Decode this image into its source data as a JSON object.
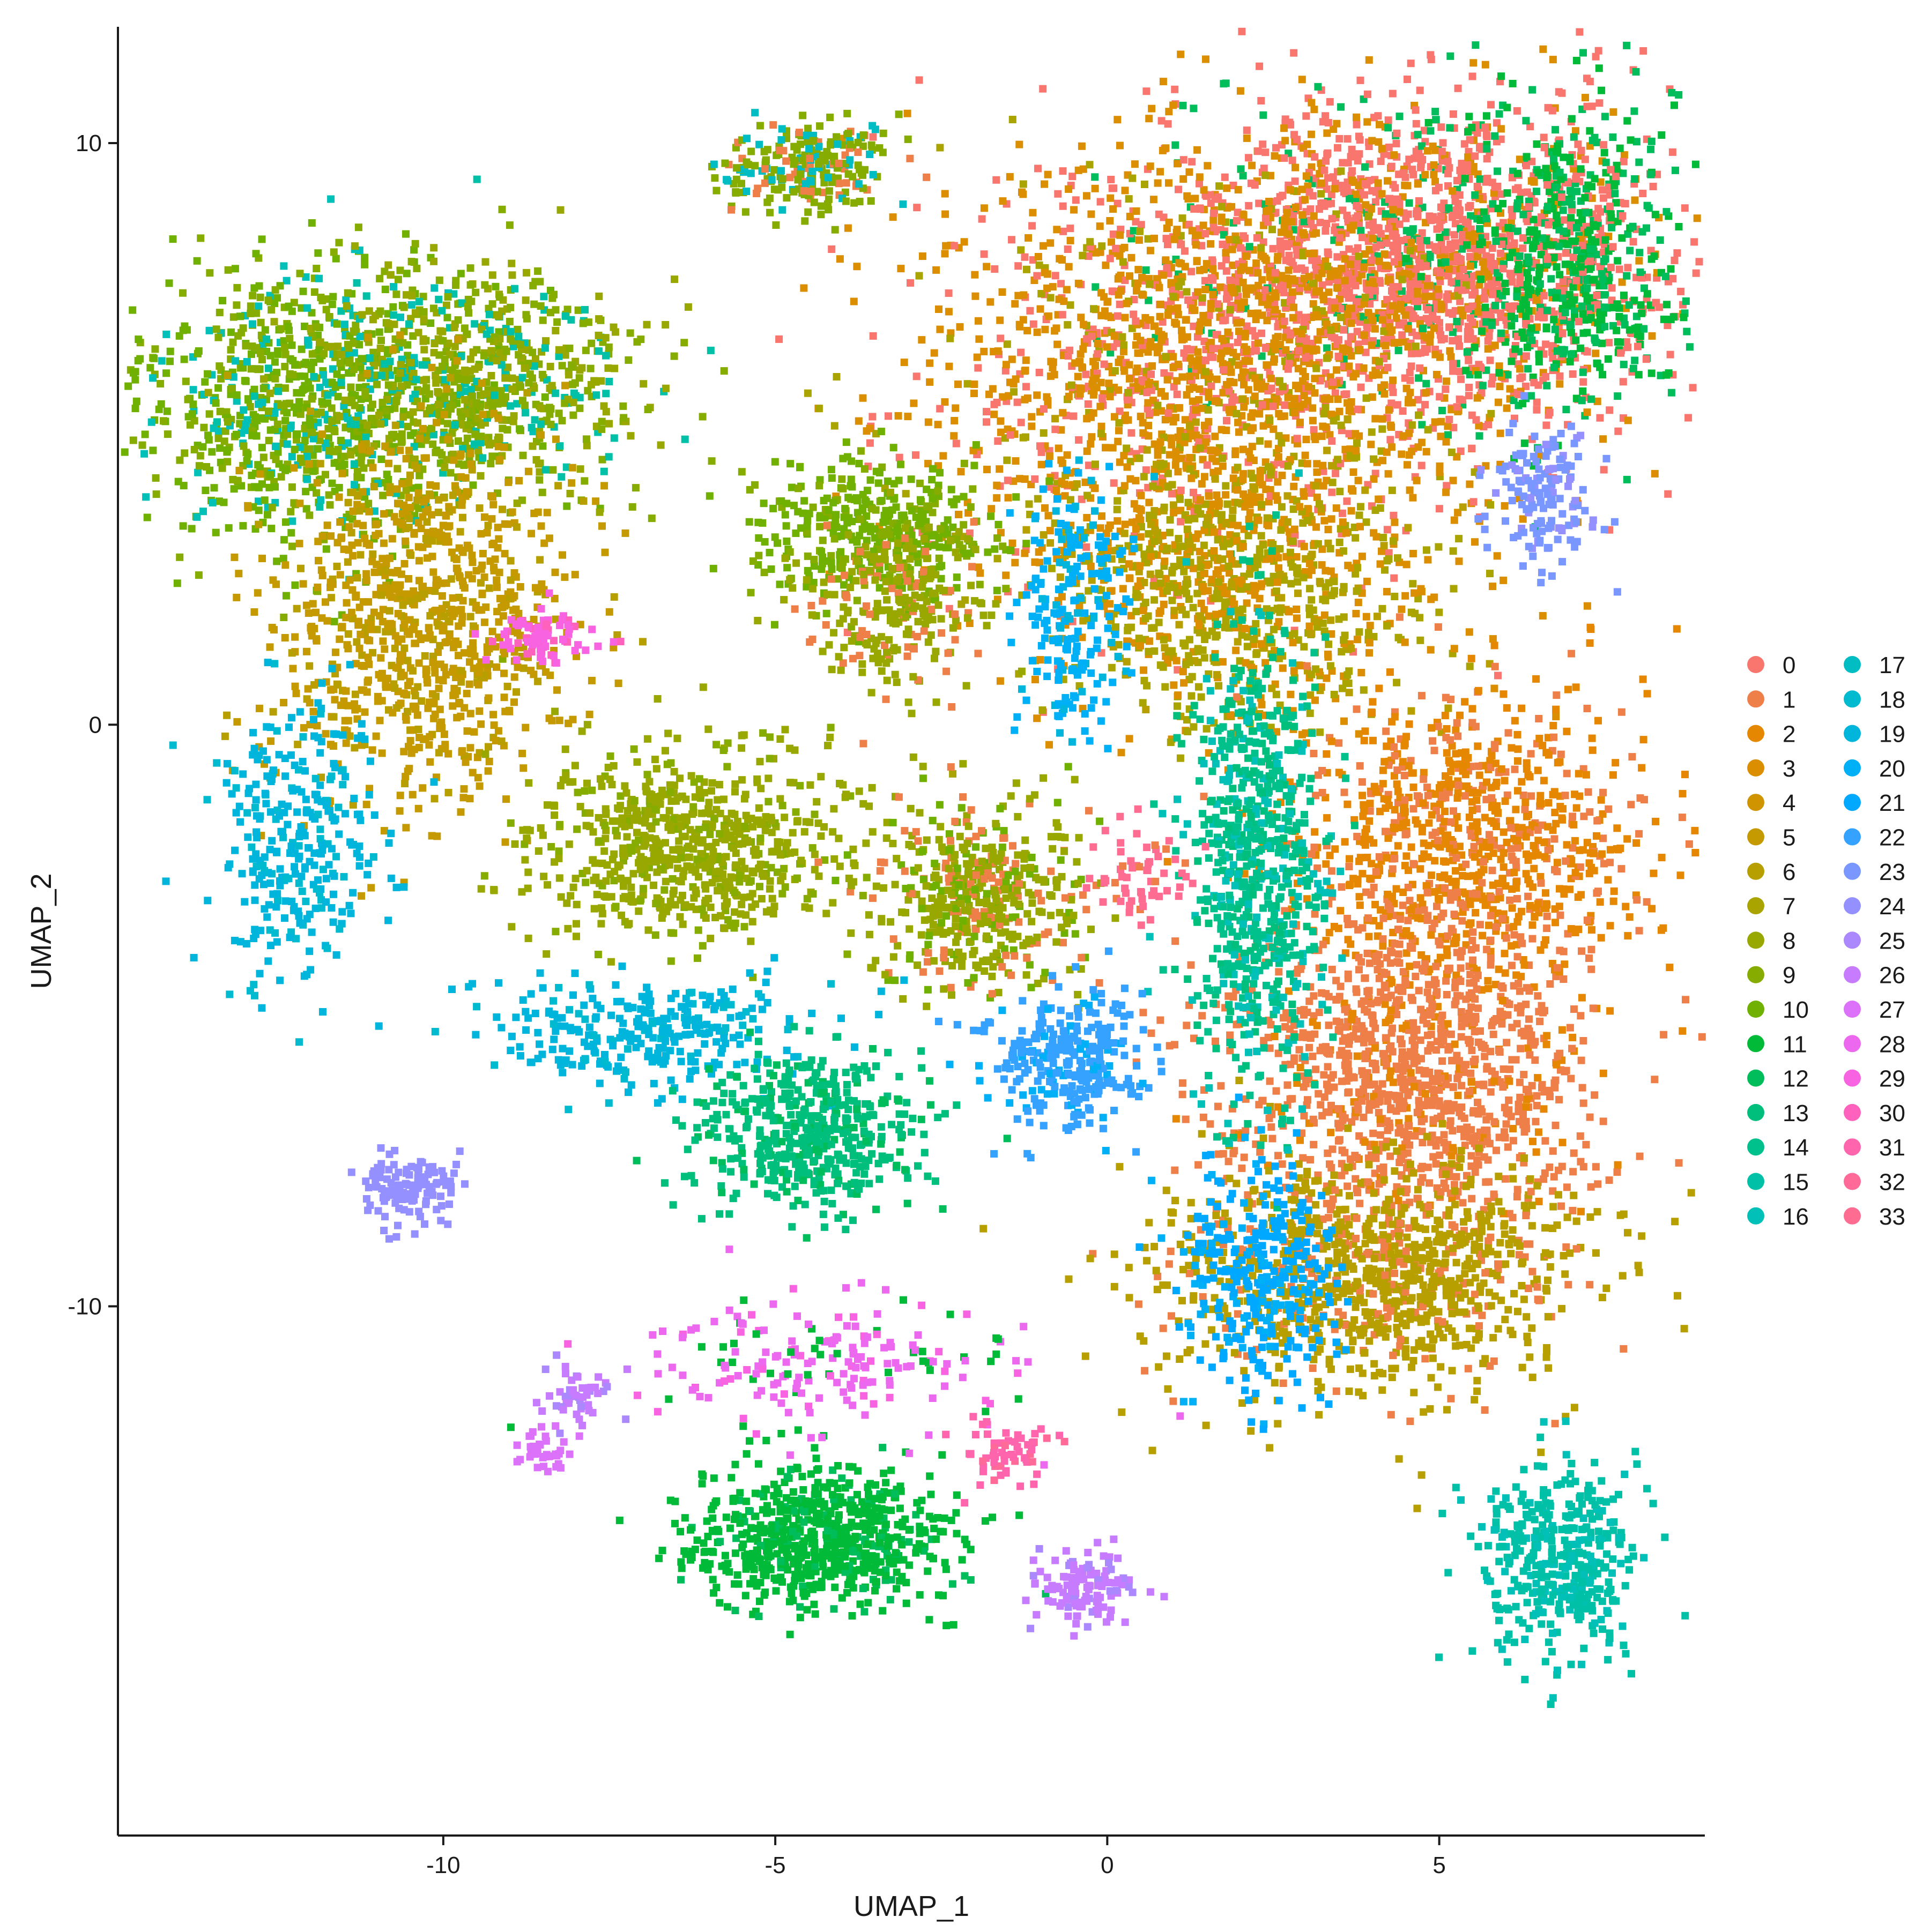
{
  "chart_data": {
    "type": "scatter",
    "xlabel": "UMAP_1",
    "ylabel": "UMAP_2",
    "xlim": [
      -14.9,
      9.0
    ],
    "ylim": [
      -19.1,
      12.0
    ],
    "xticks": [
      -10,
      -5,
      0,
      5
    ],
    "yticks": [
      10,
      0,
      -10
    ],
    "legend_position": "right",
    "legend_columns": 2,
    "grid": false,
    "series": [
      {
        "name": "0",
        "color": "#F8766D"
      },
      {
        "name": "1",
        "color": "#EF7F49"
      },
      {
        "name": "2",
        "color": "#E58700"
      },
      {
        "name": "3",
        "color": "#DB8E00"
      },
      {
        "name": "4",
        "color": "#D09400"
      },
      {
        "name": "5",
        "color": "#C49A00"
      },
      {
        "name": "6",
        "color": "#B79F00"
      },
      {
        "name": "7",
        "color": "#A9A400"
      },
      {
        "name": "8",
        "color": "#99A800"
      },
      {
        "name": "9",
        "color": "#86AC00"
      },
      {
        "name": "10",
        "color": "#6FB000"
      },
      {
        "name": "11",
        "color": "#00BA38"
      },
      {
        "name": "12",
        "color": "#00BD5C"
      },
      {
        "name": "13",
        "color": "#00BF7D"
      },
      {
        "name": "14",
        "color": "#00C08B"
      },
      {
        "name": "15",
        "color": "#00C1A7"
      },
      {
        "name": "16",
        "color": "#00C0B8"
      },
      {
        "name": "17",
        "color": "#00BDC4"
      },
      {
        "name": "18",
        "color": "#00BAD0"
      },
      {
        "name": "19",
        "color": "#00B5DC"
      },
      {
        "name": "20",
        "color": "#00B0F6"
      },
      {
        "name": "21",
        "color": "#00A9FF"
      },
      {
        "name": "22",
        "color": "#35A2FF"
      },
      {
        "name": "23",
        "color": "#7997FF"
      },
      {
        "name": "24",
        "color": "#9590FF"
      },
      {
        "name": "25",
        "color": "#AC88FF"
      },
      {
        "name": "26",
        "color": "#C77CFF"
      },
      {
        "name": "27",
        "color": "#DC71FA"
      },
      {
        "name": "28",
        "color": "#EC69EF"
      },
      {
        "name": "29",
        "color": "#F763E0"
      },
      {
        "name": "30",
        "color": "#FF62BC"
      },
      {
        "name": "31",
        "color": "#FF65AC"
      },
      {
        "name": "32",
        "color": "#FF6A98"
      },
      {
        "name": "33",
        "color": "#FF6C91"
      }
    ],
    "clusters": [
      {
        "x": 4.5,
        "y": 8.0,
        "sx": 1.9,
        "sy": 1.4,
        "n": 1800,
        "mix": [
          [
            0,
            6
          ],
          [
            3,
            2
          ],
          [
            12,
            1
          ]
        ]
      },
      {
        "x": 1.5,
        "y": 6.0,
        "sx": 2.2,
        "sy": 1.9,
        "n": 1800,
        "mix": [
          [
            3,
            5
          ],
          [
            0,
            2
          ],
          [
            7,
            1
          ]
        ]
      },
      {
        "x": 7.0,
        "y": 8.0,
        "sx": 0.8,
        "sy": 1.3,
        "n": 600,
        "mix": [
          [
            11,
            3
          ],
          [
            12,
            2
          ],
          [
            0,
            1
          ]
        ]
      },
      {
        "x": 2.0,
        "y": 2.5,
        "sx": 1.5,
        "sy": 1.2,
        "n": 900,
        "mix": [
          [
            7,
            3
          ],
          [
            3,
            2
          ],
          [
            6,
            1
          ]
        ]
      },
      {
        "x": 6.6,
        "y": 4.0,
        "sx": 0.4,
        "sy": 0.6,
        "n": 150,
        "mix": [
          [
            23,
            3
          ],
          [
            24,
            1
          ]
        ]
      },
      {
        "x": 5.5,
        "y": -2.0,
        "sx": 1.3,
        "sy": 1.3,
        "n": 900,
        "mix": [
          [
            2,
            5
          ],
          [
            1,
            2
          ]
        ]
      },
      {
        "x": 4.5,
        "y": -6.0,
        "sx": 1.4,
        "sy": 1.5,
        "n": 1200,
        "mix": [
          [
            1,
            6
          ],
          [
            2,
            1
          ]
        ]
      },
      {
        "x": 4.0,
        "y": -9.5,
        "sx": 1.6,
        "sy": 1.0,
        "n": 1000,
        "mix": [
          [
            6,
            5
          ],
          [
            1,
            1
          ]
        ]
      },
      {
        "x": 2.2,
        "y": -2.5,
        "sx": 0.5,
        "sy": 2.0,
        "n": 700,
        "mix": [
          [
            14,
            3
          ],
          [
            13,
            1
          ],
          [
            16,
            1
          ]
        ]
      },
      {
        "x": 2.3,
        "y": -9.5,
        "sx": 0.6,
        "sy": 1.0,
        "n": 300,
        "mix": [
          [
            21,
            3
          ],
          [
            20,
            1
          ]
        ]
      },
      {
        "x": -12.0,
        "y": 5.5,
        "sx": 1.4,
        "sy": 1.2,
        "n": 900,
        "mix": [
          [
            10,
            3
          ],
          [
            9,
            2
          ],
          [
            16,
            1
          ]
        ]
      },
      {
        "x": -9.5,
        "y": 6.0,
        "sx": 1.3,
        "sy": 1.0,
        "n": 700,
        "mix": [
          [
            9,
            3
          ],
          [
            8,
            2
          ],
          [
            15,
            1
          ]
        ]
      },
      {
        "x": -10.3,
        "y": 1.8,
        "sx": 1.1,
        "sy": 1.6,
        "n": 900,
        "mix": [
          [
            5,
            4
          ],
          [
            6,
            1
          ]
        ]
      },
      {
        "x": -6.3,
        "y": -2.0,
        "sx": 1.2,
        "sy": 0.8,
        "n": 700,
        "mix": [
          [
            8,
            4
          ],
          [
            9,
            1
          ]
        ]
      },
      {
        "x": -12.2,
        "y": -2.0,
        "sx": 0.6,
        "sy": 1.2,
        "n": 300,
        "mix": [
          [
            19,
            4
          ],
          [
            18,
            1
          ]
        ]
      },
      {
        "x": -8.5,
        "y": 1.5,
        "sx": 0.4,
        "sy": 0.2,
        "n": 80,
        "mix": [
          [
            29,
            3
          ],
          [
            30,
            1
          ]
        ]
      },
      {
        "x": -3.5,
        "y": 3.3,
        "sx": 0.9,
        "sy": 0.6,
        "n": 400,
        "mix": [
          [
            10,
            3
          ],
          [
            9,
            1
          ]
        ]
      },
      {
        "x": -3.2,
        "y": 2.0,
        "sx": 0.7,
        "sy": 0.7,
        "n": 250,
        "mix": [
          [
            8,
            3
          ],
          [
            1,
            1
          ]
        ]
      },
      {
        "x": -2.0,
        "y": -3.0,
        "sx": 0.8,
        "sy": 0.8,
        "n": 500,
        "mix": [
          [
            8,
            3
          ],
          [
            1,
            1
          ],
          [
            10,
            1
          ]
        ]
      },
      {
        "x": -0.5,
        "y": 2.0,
        "sx": 0.4,
        "sy": 1.2,
        "n": 200,
        "mix": [
          [
            20,
            3
          ],
          [
            19,
            1
          ]
        ]
      },
      {
        "x": -4.5,
        "y": 9.5,
        "sx": 0.6,
        "sy": 0.4,
        "n": 250,
        "mix": [
          [
            9,
            3
          ],
          [
            1,
            1
          ],
          [
            17,
            1
          ]
        ]
      },
      {
        "x": -7.0,
        "y": -5.3,
        "sx": 1.2,
        "sy": 0.5,
        "n": 300,
        "mix": [
          [
            19,
            4
          ],
          [
            18,
            1
          ]
        ]
      },
      {
        "x": -4.5,
        "y": -7.0,
        "sx": 0.8,
        "sy": 0.7,
        "n": 500,
        "mix": [
          [
            13,
            4
          ],
          [
            12,
            1
          ]
        ]
      },
      {
        "x": -0.6,
        "y": -5.8,
        "sx": 0.6,
        "sy": 0.6,
        "n": 300,
        "mix": [
          [
            22,
            4
          ],
          [
            20,
            1
          ]
        ]
      },
      {
        "x": -10.5,
        "y": -8.0,
        "sx": 0.4,
        "sy": 0.3,
        "n": 120,
        "mix": [
          [
            24,
            4
          ]
        ]
      },
      {
        "x": -4.3,
        "y": -14.0,
        "sx": 1.0,
        "sy": 0.6,
        "n": 700,
        "mix": [
          [
            11,
            5
          ],
          [
            12,
            1
          ]
        ]
      },
      {
        "x": -4.3,
        "y": -11.0,
        "sx": 1.5,
        "sy": 0.6,
        "n": 200,
        "mix": [
          [
            28,
            3
          ],
          [
            29,
            1
          ],
          [
            11,
            1
          ]
        ]
      },
      {
        "x": -0.3,
        "y": -14.9,
        "sx": 0.4,
        "sy": 0.3,
        "n": 120,
        "mix": [
          [
            26,
            4
          ],
          [
            25,
            1
          ]
        ]
      },
      {
        "x": 6.8,
        "y": -14.4,
        "sx": 0.6,
        "sy": 0.8,
        "n": 400,
        "mix": [
          [
            15,
            4
          ],
          [
            16,
            1
          ]
        ]
      },
      {
        "x": -8.0,
        "y": -11.5,
        "sx": 0.3,
        "sy": 0.3,
        "n": 50,
        "mix": [
          [
            26,
            3
          ],
          [
            25,
            1
          ]
        ]
      },
      {
        "x": -8.5,
        "y": -12.5,
        "sx": 0.2,
        "sy": 0.2,
        "n": 40,
        "mix": [
          [
            27,
            3
          ]
        ]
      },
      {
        "x": -1.5,
        "y": -12.5,
        "sx": 0.3,
        "sy": 0.3,
        "n": 60,
        "mix": [
          [
            31,
            3
          ],
          [
            32,
            1
          ]
        ]
      },
      {
        "x": 0.5,
        "y": -2.5,
        "sx": 0.4,
        "sy": 0.4,
        "n": 60,
        "mix": [
          [
            33,
            3
          ],
          [
            1,
            1
          ]
        ]
      }
    ]
  }
}
